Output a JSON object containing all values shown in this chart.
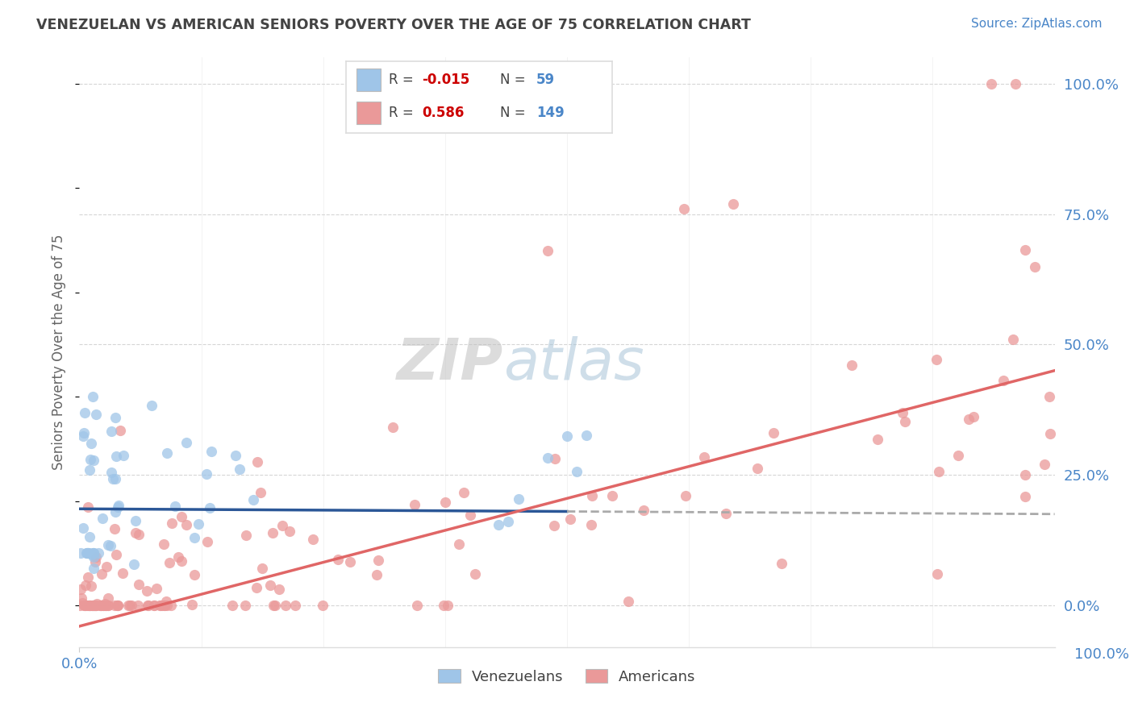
{
  "title": "VENEZUELAN VS AMERICAN SENIORS POVERTY OVER THE AGE OF 75 CORRELATION CHART",
  "source": "Source: ZipAtlas.com",
  "ylabel": "Seniors Poverty Over the Age of 75",
  "legend_venezuelans": "Venezuelans",
  "legend_americans": "Americans",
  "r_venezuelan": "-0.015",
  "n_venezuelan": "59",
  "r_american": "0.586",
  "n_american": "149",
  "blue_scatter_color": "#9fc5e8",
  "pink_scatter_color": "#ea9999",
  "blue_line_color": "#2b5797",
  "pink_line_color": "#e06666",
  "dash_line_color": "#aaaaaa",
  "watermark_zip_color": "#c8c8c8",
  "watermark_atlas_color": "#a0b8d0",
  "background_color": "#ffffff",
  "title_color": "#434343",
  "source_color": "#4a86c8",
  "tick_color": "#4a86c8",
  "ylabel_color": "#666666",
  "legend_text_color": "#434343",
  "r_value_color": "#cc0000",
  "n_value_color": "#4a86c8",
  "grid_color": "#cccccc",
  "legend_box_color": "#dddddd",
  "ven_line_x_end": 0.5,
  "xlim": [
    0.0,
    1.0
  ],
  "ylim": [
    -0.08,
    1.05
  ],
  "ven_line_slope": -0.01,
  "ven_line_intercept": 0.185,
  "ame_line_slope": 0.49,
  "ame_line_intercept": -0.04
}
